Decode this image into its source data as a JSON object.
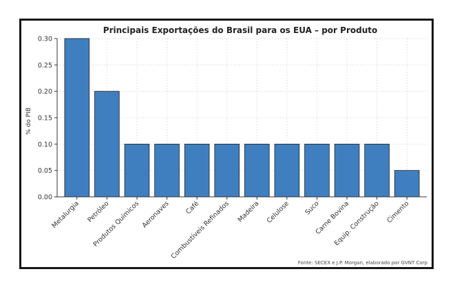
{
  "chart_data": {
    "type": "bar",
    "title": "Principais Exportações do Brasil para os EUA – por Produto",
    "xlabel": "",
    "ylabel": "% do PIB",
    "categories": [
      "Metalurgia",
      "Petróleo",
      "Produtos Químicos",
      "Aeronaves",
      "Café",
      "Combustíveis Refinados",
      "Madeira",
      "Celulose",
      "Suco",
      "Carne Bovina",
      "Equip. Construção",
      "Cimento"
    ],
    "values": [
      0.3,
      0.2,
      0.1,
      0.1,
      0.1,
      0.1,
      0.1,
      0.1,
      0.1,
      0.1,
      0.1,
      0.05
    ],
    "ylim": [
      0,
      0.3
    ],
    "yticks": [
      "0.00",
      "0.05",
      "0.10",
      "0.15",
      "0.20",
      "0.25",
      "0.30"
    ],
    "grid": true,
    "bar_color": "#3f7fbf",
    "bar_edge_color": "#1f1f1f",
    "source": "Fonte: SECEX e J.P. Morgan, elaborado por GVNT Corp"
  }
}
